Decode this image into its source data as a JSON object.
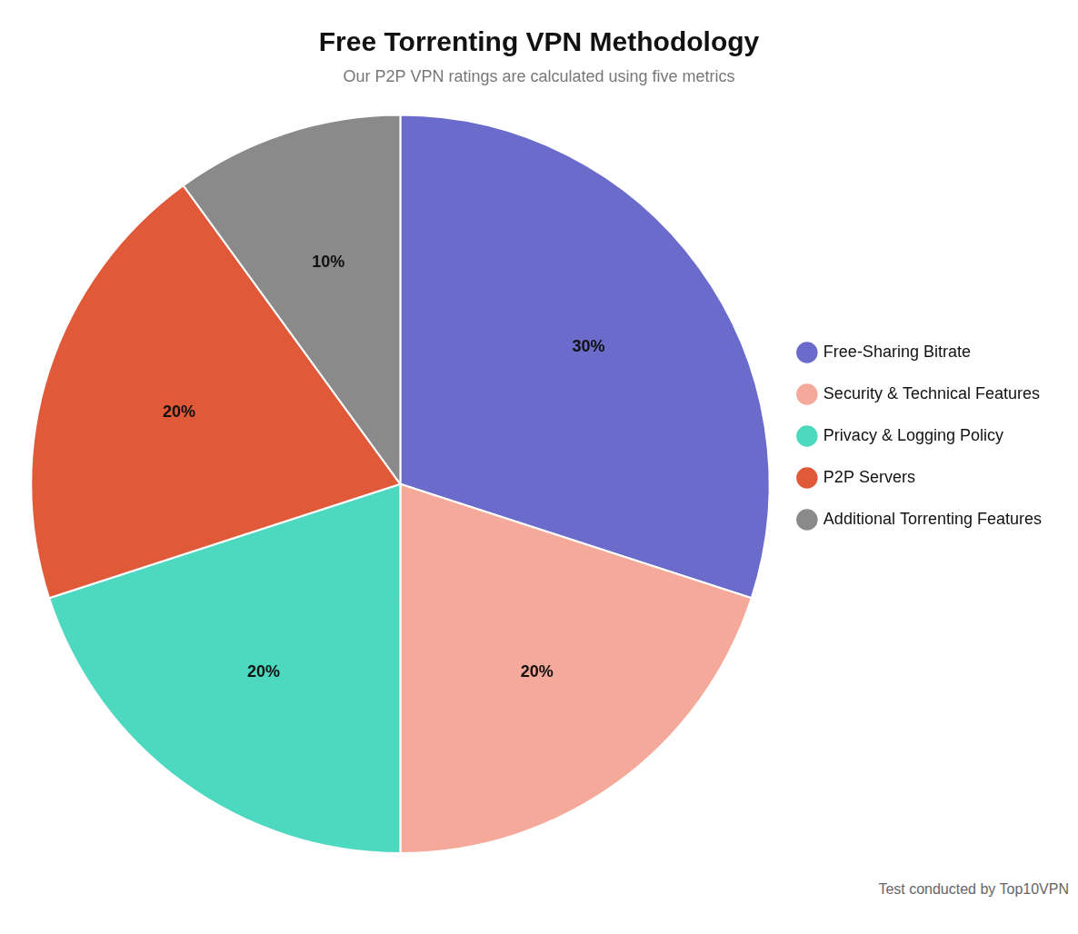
{
  "chart_data": {
    "type": "pie",
    "title": "Free Torrenting VPN Methodology",
    "subtitle": "Our P2P VPN ratings are calculated using five metrics",
    "categories": [
      "Free-Sharing Bitrate",
      "Security & Technical Features",
      "Privacy & Logging Policy",
      "P2P Servers",
      "Additional Torrenting Features"
    ],
    "values": [
      30,
      20,
      20,
      20,
      10
    ],
    "value_labels": [
      "30%",
      "20%",
      "20%",
      "20%",
      "10%"
    ],
    "data_labels": true,
    "colors": [
      "#6B6BCC",
      "#F5A99A",
      "#4DD9C0",
      "#E05A3A",
      "#8A8A8A"
    ],
    "legend": "right",
    "annotations": [
      "Test conducted by Top10VPN"
    ]
  }
}
